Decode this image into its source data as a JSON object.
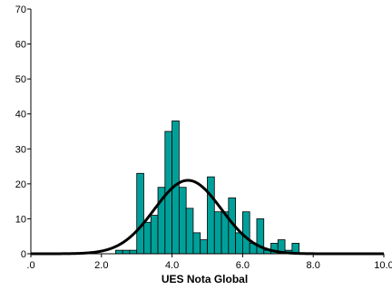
{
  "chart_data": {
    "type": "bar",
    "title": "",
    "xlabel": "UES Nota Global",
    "ylabel": "",
    "xlim": [
      0,
      10
    ],
    "ylim": [
      0,
      70
    ],
    "xticks": [
      0,
      2,
      4,
      6,
      8,
      10
    ],
    "xtick_labels": [
      ".0",
      "2.0",
      "4.0",
      "6.0",
      "8.0",
      "10.0"
    ],
    "yticks": [
      0,
      10,
      20,
      30,
      40,
      50,
      60,
      70
    ],
    "ytick_labels": [
      "0",
      "10",
      "20",
      "30",
      "40",
      "50",
      "60",
      "70"
    ],
    "grid": false,
    "bin_width": 0.2,
    "bins": [
      {
        "start": 2.4,
        "count": 1
      },
      {
        "start": 2.6,
        "count": 1
      },
      {
        "start": 2.8,
        "count": 1
      },
      {
        "start": 3.0,
        "count": 23
      },
      {
        "start": 3.2,
        "count": 9
      },
      {
        "start": 3.4,
        "count": 11
      },
      {
        "start": 3.6,
        "count": 19
      },
      {
        "start": 3.8,
        "count": 35
      },
      {
        "start": 4.0,
        "count": 38
      },
      {
        "start": 4.2,
        "count": 19
      },
      {
        "start": 4.4,
        "count": 13
      },
      {
        "start": 4.6,
        "count": 6
      },
      {
        "start": 4.8,
        "count": 4
      },
      {
        "start": 5.0,
        "count": 22
      },
      {
        "start": 5.2,
        "count": 12
      },
      {
        "start": 5.4,
        "count": 12
      },
      {
        "start": 5.6,
        "count": 16
      },
      {
        "start": 5.8,
        "count": 6
      },
      {
        "start": 6.0,
        "count": 12
      },
      {
        "start": 6.2,
        "count": 3
      },
      {
        "start": 6.4,
        "count": 10
      },
      {
        "start": 6.6,
        "count": 1
      },
      {
        "start": 6.8,
        "count": 3
      },
      {
        "start": 7.0,
        "count": 4
      },
      {
        "start": 7.2,
        "count": 1
      },
      {
        "start": 7.4,
        "count": 3
      }
    ],
    "normal_curve": {
      "mean": 4.45,
      "sd": 0.95,
      "peak": 21
    },
    "bar_color": "#00a09a",
    "bar_edge_color": "#000000",
    "curve_color": "#000000"
  }
}
